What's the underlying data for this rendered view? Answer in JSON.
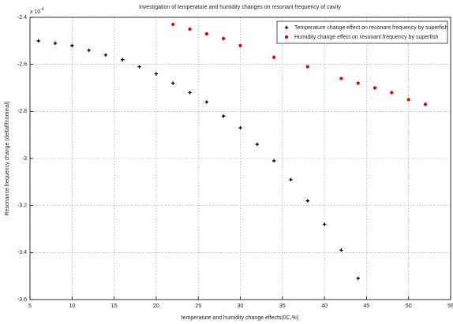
{
  "chart_data": {
    "type": "scatter",
    "title": "Investigation of temperature and humidity changes on resonant frequency of cavity",
    "x_label": "temperature and humidity change effects(0C,%)",
    "y_label": "Resonance frequency change (deltaf/fnominal)",
    "y_multiplier": {
      "base": "x 10",
      "exponent": "-4"
    },
    "xlim": [
      5,
      55
    ],
    "xticks": [
      5,
      10,
      15,
      20,
      25,
      30,
      35,
      40,
      45,
      50,
      55
    ],
    "ylim": [
      -3.6,
      -2.4
    ],
    "yticks": [
      -3.6,
      -3.4,
      -3.2,
      -3,
      -2.8,
      -2.6,
      -2.4
    ],
    "grid": true,
    "legend": "northeast",
    "series": [
      {
        "name": "Temperature change effect on resonant frequency by superfish",
        "color": "#000000",
        "marker": "plus",
        "x": [
          6,
          8,
          10,
          12,
          14,
          16,
          18,
          20,
          22,
          24,
          26,
          28,
          30,
          32,
          34,
          36,
          38,
          40,
          42,
          44
        ],
        "values": [
          -2.5,
          -2.51,
          -2.52,
          -2.54,
          -2.56,
          -2.58,
          -2.61,
          -2.64,
          -2.68,
          -2.72,
          -2.76,
          -2.82,
          -2.87,
          -2.94,
          -3.01,
          -3.09,
          -3.18,
          -3.28,
          -3.39,
          -3.51
        ]
      },
      {
        "name": "Humidity change effect on resonant frequency by superfish",
        "color": "#e00000",
        "marker": "dot",
        "x": [
          22,
          24,
          26,
          28,
          30,
          34,
          38,
          42,
          44,
          46,
          48,
          50,
          52
        ],
        "values": [
          -2.43,
          -2.45,
          -2.47,
          -2.49,
          -2.52,
          -2.57,
          -2.61,
          -2.66,
          -2.68,
          -2.7,
          -2.72,
          -2.75,
          -2.77
        ]
      }
    ]
  }
}
